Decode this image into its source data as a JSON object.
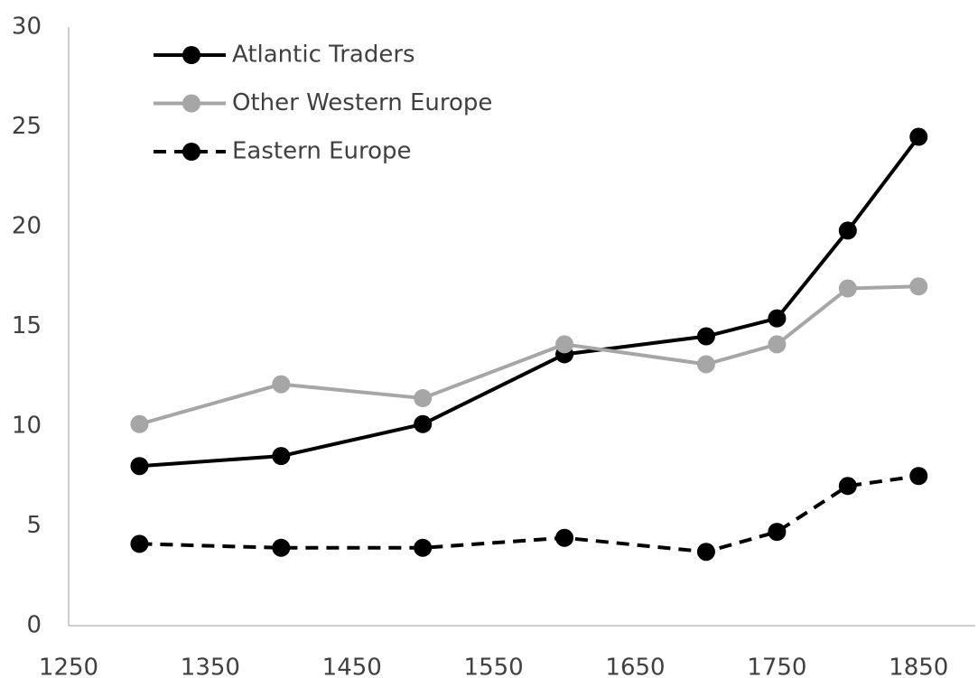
{
  "chart_data": {
    "type": "line",
    "x": [
      1300,
      1400,
      1500,
      1600,
      1700,
      1750,
      1800,
      1850
    ],
    "series": [
      {
        "name": "Atlantic Traders",
        "color": "#000000",
        "dashed": false,
        "values": [
          8.0,
          8.5,
          10.1,
          13.6,
          14.5,
          15.4,
          19.8,
          24.5
        ]
      },
      {
        "name": "Other Western Europe",
        "color": "#a6a6a6",
        "dashed": false,
        "values": [
          10.1,
          12.1,
          11.4,
          14.1,
          13.1,
          14.1,
          16.9,
          17.0
        ]
      },
      {
        "name": "Eastern Europe",
        "color": "#000000",
        "dashed": true,
        "values": [
          4.1,
          3.9,
          3.9,
          4.4,
          3.7,
          4.7,
          7.0,
          7.5
        ]
      }
    ],
    "xlim": [
      1250,
      1890
    ],
    "xticks": [
      1250,
      1350,
      1450,
      1550,
      1650,
      1750,
      1850
    ],
    "ylim": [
      0,
      30
    ],
    "yticks": [
      0,
      5,
      10,
      15,
      20,
      25,
      30
    ],
    "grid": false,
    "legend": "upper left"
  }
}
